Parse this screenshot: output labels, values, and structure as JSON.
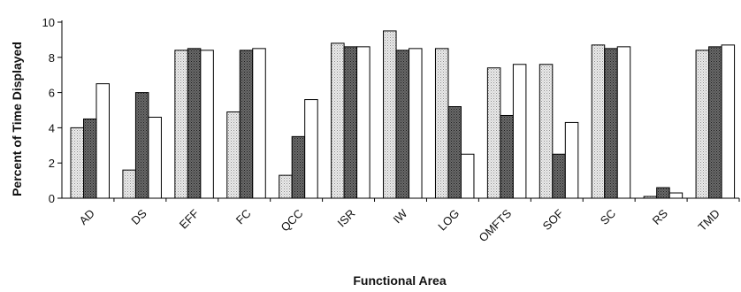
{
  "chart_data": {
    "type": "bar",
    "title": "",
    "xlabel": "Functional Area",
    "ylabel": "Percent of Time Displayed",
    "ylim": [
      0,
      10
    ],
    "yticks": [
      0,
      2,
      4,
      6,
      8,
      10
    ],
    "grid": false,
    "legend": "none",
    "categories": [
      "AD",
      "DS",
      "EFF",
      "FC",
      "QCC",
      "ISR",
      "IW",
      "LOG",
      "OMFTS",
      "SOF",
      "SC",
      "RS",
      "TMD"
    ],
    "series": [
      {
        "fill": "#d4d4d4",
        "pattern": "light-dotted",
        "values": [
          4.0,
          1.6,
          8.4,
          4.9,
          1.3,
          8.8,
          9.5,
          8.5,
          7.4,
          7.6,
          8.7,
          0.1,
          8.4
        ]
      },
      {
        "fill": "#5a5a5a",
        "pattern": "dark-dotted",
        "values": [
          4.5,
          6.0,
          8.5,
          8.4,
          3.5,
          8.6,
          8.4,
          5.2,
          4.7,
          2.5,
          8.5,
          0.6,
          8.6
        ]
      },
      {
        "fill": "#ffffff",
        "pattern": "none",
        "values": [
          6.5,
          4.6,
          8.4,
          8.5,
          5.6,
          8.6,
          8.5,
          2.5,
          7.6,
          4.3,
          8.6,
          0.3,
          8.7
        ]
      }
    ]
  }
}
